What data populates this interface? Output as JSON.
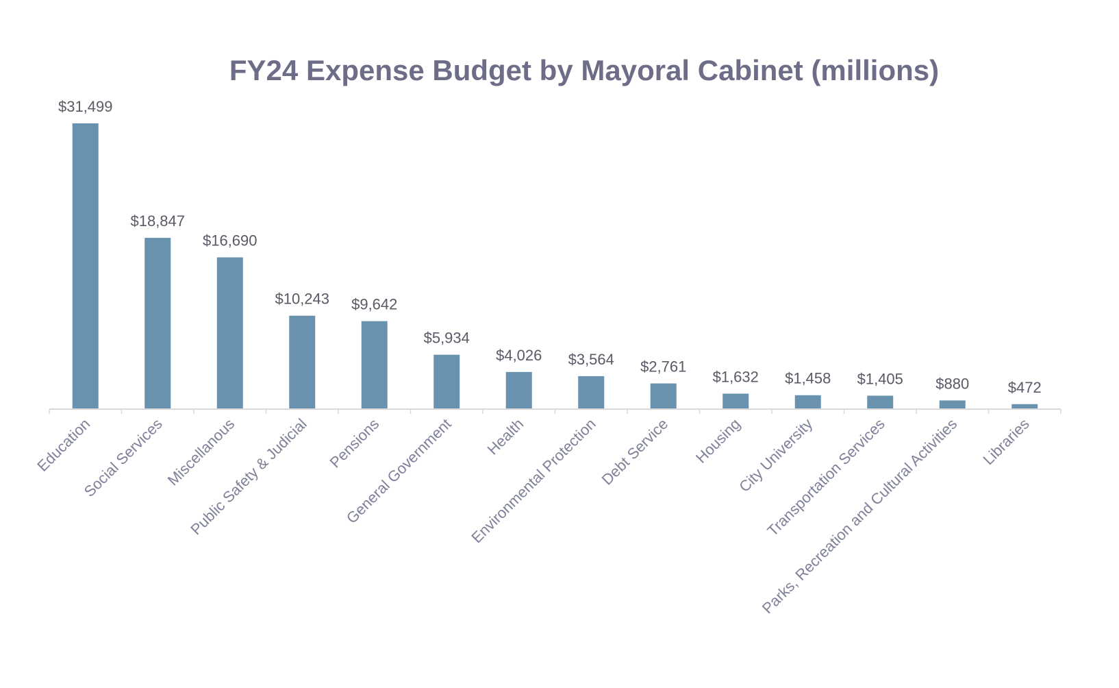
{
  "chart_data": {
    "type": "bar",
    "title": "FY24 Expense Budget by Mayoral Cabinet (millions)",
    "xlabel": "",
    "ylabel": "",
    "categories": [
      "Education",
      "Social Services",
      "Miscellanous",
      "Public Safety & Judicial",
      "Pensions",
      "General Government",
      "Health",
      "Environmental Protection",
      "Debt Service",
      "Housing",
      "City University",
      "Transportation Services",
      "Parks, Recreation and Cultural Activities",
      "Libraries"
    ],
    "values": [
      31499,
      18847,
      16690,
      10243,
      9642,
      5934,
      4026,
      3564,
      2761,
      1632,
      1458,
      1405,
      880,
      472
    ],
    "value_labels": [
      "$31,499",
      "$18,847",
      "$16,690",
      "$10,243",
      "$9,642",
      "$5,934",
      "$4,026",
      "$3,564",
      "$2,761",
      "$1,632",
      "$1,458",
      "$1,405",
      "$880",
      "$472"
    ],
    "ylim": [
      0,
      31499
    ],
    "grid": false,
    "y_axis_visible": false,
    "colors": {
      "bar": "#6892ae",
      "title": "#6e6d88",
      "axis": "#d9d9d9"
    }
  }
}
